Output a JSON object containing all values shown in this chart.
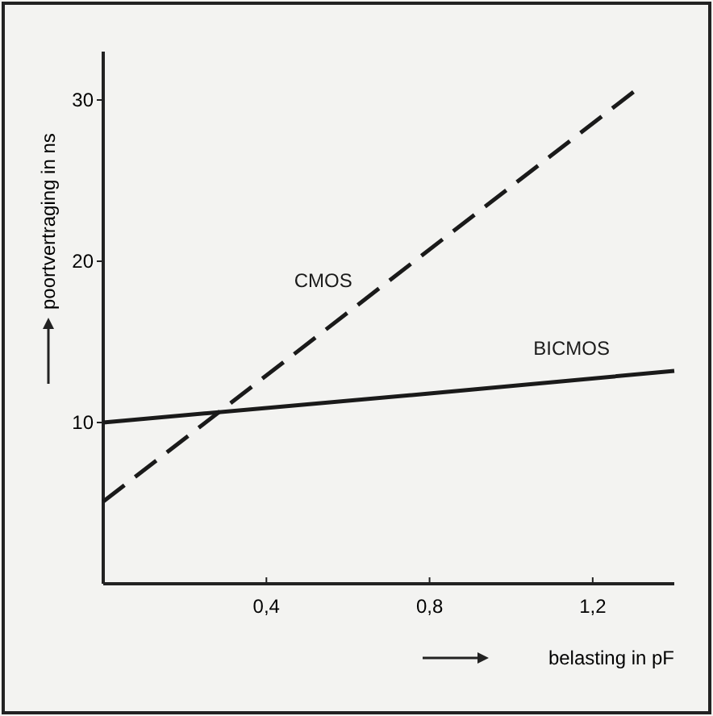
{
  "chart_data": {
    "type": "line",
    "xlabel": "belasting in pF",
    "ylabel": "poortvertraging in ns",
    "xlim": [
      0,
      1.4
    ],
    "xticks": [
      {
        "value": 0.4,
        "label": "0,4"
      },
      {
        "value": 0.8,
        "label": "0,8"
      },
      {
        "value": 1.2,
        "label": "1,2"
      }
    ],
    "ylim": [
      0,
      33
    ],
    "yticks": [
      10,
      20,
      30
    ],
    "grid": false,
    "series": [
      {
        "name": "CMOS",
        "color": "#1a1a1a",
        "line_style": "dashed",
        "x": [
          0,
          1.3
        ],
        "values": [
          5.1,
          30.5
        ]
      },
      {
        "name": "BICMOS",
        "color": "#1a1a1a",
        "line_style": "solid",
        "x": [
          0,
          0.8,
          1.4
        ],
        "values": [
          10,
          11.8,
          13.2
        ]
      }
    ]
  }
}
